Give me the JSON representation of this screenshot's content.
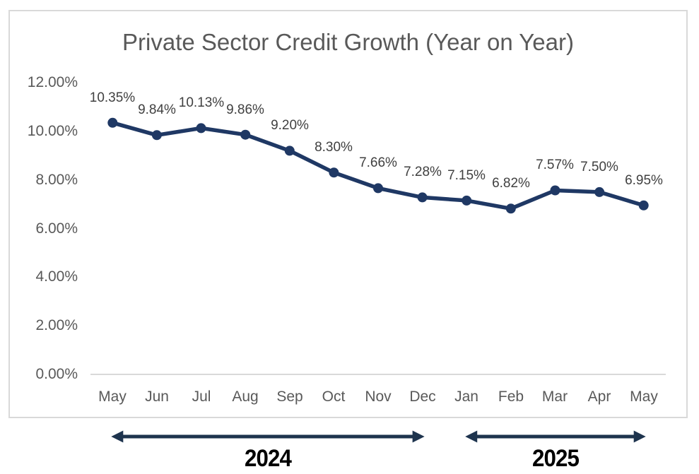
{
  "chart_data": {
    "type": "line",
    "title": "Private Sector Credit Growth (Year on Year)",
    "categories": [
      "May",
      "Jun",
      "Jul",
      "Aug",
      "Sep",
      "Oct",
      "Nov",
      "Dec",
      "Jan",
      "Feb",
      "Mar",
      "Apr",
      "May"
    ],
    "values": [
      10.35,
      9.84,
      10.13,
      9.86,
      9.2,
      8.3,
      7.66,
      7.28,
      7.15,
      6.82,
      7.57,
      7.5,
      6.95
    ],
    "data_labels": [
      "10.35%",
      "9.84%",
      "10.13%",
      "9.86%",
      "9.20%",
      "8.30%",
      "7.66%",
      "7.28%",
      "7.15%",
      "6.82%",
      "7.57%",
      "7.50%",
      "6.95%"
    ],
    "xlabel": "",
    "ylabel": "",
    "ylim": [
      0,
      12
    ],
    "y_axis": {
      "tick_labels": [
        "12.00%",
        "10.00%",
        "8.00%",
        "6.00%",
        "4.00%",
        "2.00%",
        "0.00%"
      ],
      "tick_values": [
        12,
        10,
        8,
        6,
        4,
        2,
        0
      ]
    },
    "grid": false,
    "legend": "none",
    "marker": "circle",
    "series_color": "#1F3864"
  },
  "annotations": {
    "arrow_color": "#1E344E",
    "year_spans": [
      {
        "label": "2024",
        "start_category_index": 0,
        "end_category_index": 7
      },
      {
        "label": "2025",
        "start_category_index": 8,
        "end_category_index": 12
      }
    ]
  },
  "colors": {
    "background": "#FFFFFF",
    "frame_border": "#D9D9D9",
    "baseline": "#D9D9D9",
    "title_text": "#595959",
    "axis_text": "#595959",
    "data_label_text": "#404040",
    "year_label_text": "#000000"
  }
}
